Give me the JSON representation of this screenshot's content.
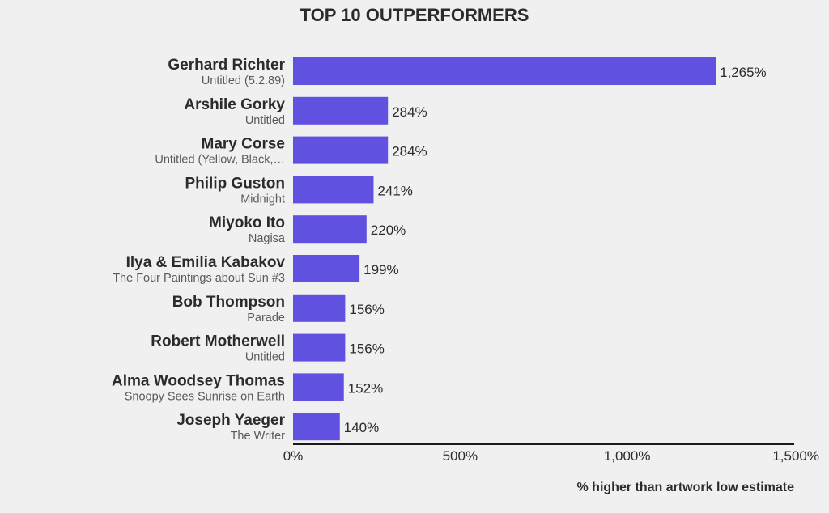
{
  "chart_data": {
    "type": "bar",
    "orientation": "horizontal",
    "title": "TOP 10 OUTPERFORMERS",
    "xlabel": "% higher than artwork low estimate",
    "ylabel": "",
    "xlim": [
      0,
      1500
    ],
    "grid": false,
    "bar_color": "#6151e0",
    "ticks": [
      {
        "value": 0,
        "label": "0%"
      },
      {
        "value": 500,
        "label": "500%"
      },
      {
        "value": 1000,
        "label": "1,000%"
      },
      {
        "value": 1500,
        "label": "1,500%"
      }
    ],
    "bars": [
      {
        "artist": "Gerhard Richter",
        "work": "Untitled (5.2.89)",
        "value": 1265,
        "label": "1,265%"
      },
      {
        "artist": "Arshile Gorky",
        "work": "Untitled",
        "value": 284,
        "label": "284%"
      },
      {
        "artist": "Mary Corse",
        "work": "Untitled (Yellow, Black,…",
        "value": 284,
        "label": "284%"
      },
      {
        "artist": "Philip Guston",
        "work": "Midnight",
        "value": 241,
        "label": "241%"
      },
      {
        "artist": "Miyoko Ito",
        "work": "Nagisa",
        "value": 220,
        "label": "220%"
      },
      {
        "artist": "Ilya & Emilia Kabakov",
        "work": "The Four Paintings about Sun #3",
        "value": 199,
        "label": "199%"
      },
      {
        "artist": "Bob Thompson",
        "work": "Parade",
        "value": 156,
        "label": "156%"
      },
      {
        "artist": "Robert Motherwell",
        "work": "Untitled",
        "value": 156,
        "label": "156%"
      },
      {
        "artist": "Alma Woodsey Thomas",
        "work": "Snoopy Sees Sunrise on Earth",
        "value": 152,
        "label": "152%"
      },
      {
        "artist": "Joseph Yaeger",
        "work": "The Writer",
        "value": 140,
        "label": "140%"
      }
    ]
  }
}
